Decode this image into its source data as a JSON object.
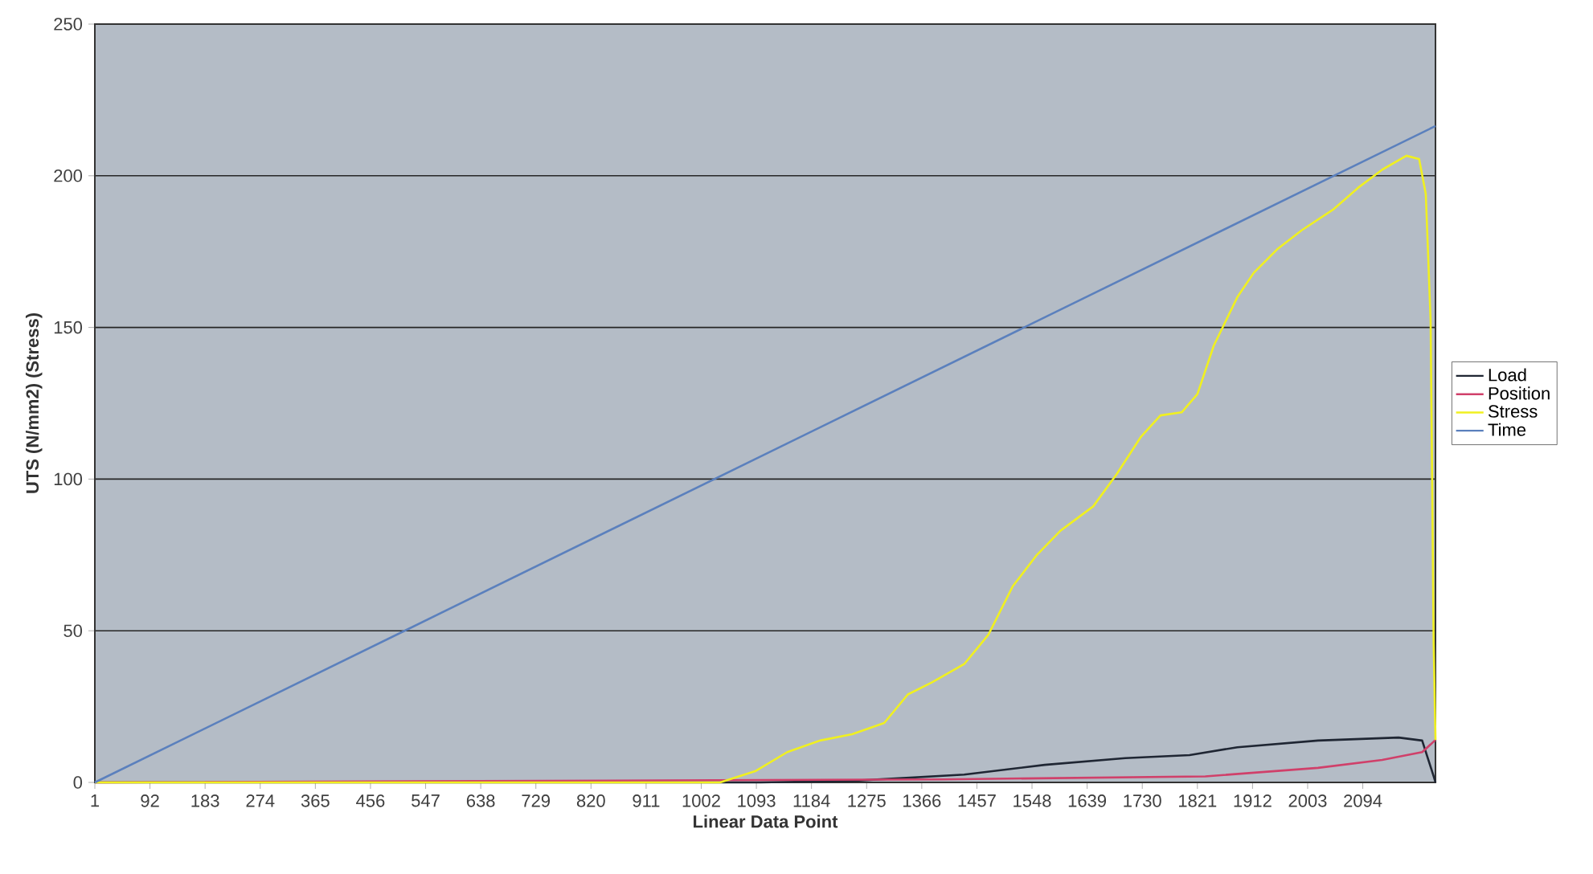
{
  "chart_data": {
    "type": "line",
    "xlabel": "Linear Data Point",
    "ylabel": "UTS (N/mm2) (Stress)",
    "xlim": [
      1,
      2214
    ],
    "ylim": [
      0,
      250
    ],
    "xticks": [
      1,
      92,
      183,
      274,
      365,
      456,
      547,
      638,
      729,
      820,
      911,
      1002,
      1093,
      1184,
      1275,
      1366,
      1457,
      1548,
      1639,
      1730,
      1821,
      1912,
      2003,
      2094
    ],
    "yticks": [
      0,
      50,
      100,
      150,
      200,
      250
    ],
    "grid": "y",
    "legend": "right",
    "marker": "none",
    "line_style": "solid",
    "series": [
      {
        "name": "Load",
        "color": "#1f2633",
        "x": [
          1,
          1100,
          1251,
          1436,
          1569,
          1702,
          1808,
          1887,
          2020,
          2153,
          2192,
          2211,
          2214
        ],
        "values": [
          0,
          0,
          0.5,
          2.6,
          5.8,
          8,
          9,
          11.6,
          13.8,
          14.8,
          13.8,
          2,
          0
        ]
      },
      {
        "name": "Position",
        "color": "#d0406a",
        "x": [
          1,
          1400,
          1834,
          2020,
          2126,
          2192,
          2214
        ],
        "values": [
          0,
          1,
          2,
          4.8,
          7.4,
          10,
          14
        ]
      },
      {
        "name": "Stress",
        "color": "#f0f020",
        "x": [
          1,
          1033,
          1091,
          1144,
          1198,
          1251,
          1304,
          1343,
          1383,
          1436,
          1476,
          1516,
          1556,
          1595,
          1649,
          1688,
          1728,
          1760,
          1795,
          1821,
          1848,
          1887,
          1914,
          1954,
          1993,
          2046,
          2086,
          2126,
          2166,
          2187,
          2198,
          2206,
          2211,
          2214
        ],
        "values": [
          0,
          0,
          3.7,
          10,
          13.8,
          15.9,
          19.6,
          29,
          33,
          39,
          48.7,
          64.6,
          75,
          83,
          91,
          101.7,
          114,
          121,
          122,
          128,
          144,
          160,
          168,
          176,
          182,
          189,
          196,
          202,
          206.6,
          205.5,
          194,
          152,
          46,
          14
        ]
      },
      {
        "name": "Time",
        "color": "#5b80bd",
        "x": [
          1,
          2214
        ],
        "values": [
          0,
          216.4
        ]
      }
    ]
  }
}
